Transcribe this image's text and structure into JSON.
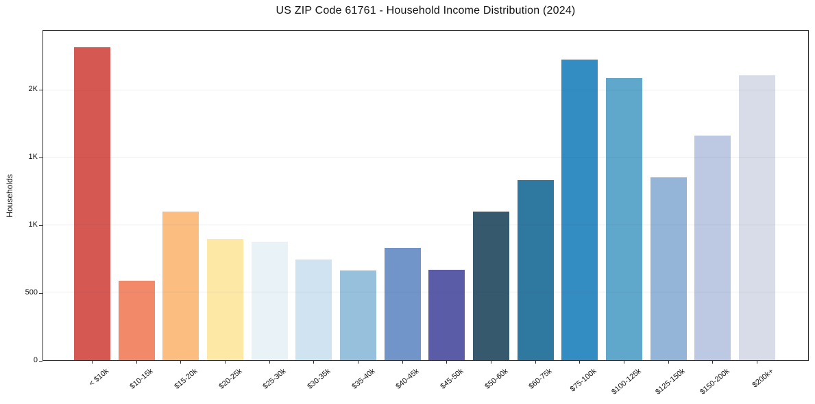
{
  "chart_data": {
    "type": "bar",
    "title": "US ZIP Code 61761 - Household Income Distribution (2024)",
    "xlabel": "",
    "ylabel": "Households",
    "categories": [
      "< $10k",
      "$10-15k",
      "$15-20k",
      "$20-25k",
      "$25-30k",
      "$30-35k",
      "$35-40k",
      "$40-45k",
      "$45-50k",
      "$50-60k",
      "$60-75k",
      "$75-100k",
      "$100-125k",
      "$125-150k",
      "$150-200k",
      "$200k+"
    ],
    "values": [
      2320,
      590,
      1100,
      900,
      880,
      745,
      667,
      833,
      670,
      1100,
      1333,
      2227,
      2091,
      1354,
      1665,
      2111
    ],
    "bar_colors": [
      "#d65853",
      "#f28a6a",
      "#fbbd80",
      "#fde8a6",
      "#e9f2f6",
      "#cfe3f0",
      "#96c0dc",
      "#7195c8",
      "#5a5ca8",
      "#36596e",
      "#2f78a0",
      "#338dc3",
      "#5fa8cc",
      "#94b5d8",
      "#bdc9e3",
      "#d8dbe8"
    ],
    "ylim": [
      0,
      2440
    ],
    "yticks": [
      {
        "value": 0,
        "label": "0"
      },
      {
        "value": 500,
        "label": "500"
      },
      {
        "value": 1000,
        "label": "1K"
      },
      {
        "value": 1500,
        "label": "1K"
      },
      {
        "value": 2000,
        "label": "2K"
      }
    ],
    "grid": "horizontal",
    "legend": "none",
    "colors": {
      "background": "#ffffff",
      "spine": "#2e2e2e",
      "text": "#111111"
    }
  }
}
